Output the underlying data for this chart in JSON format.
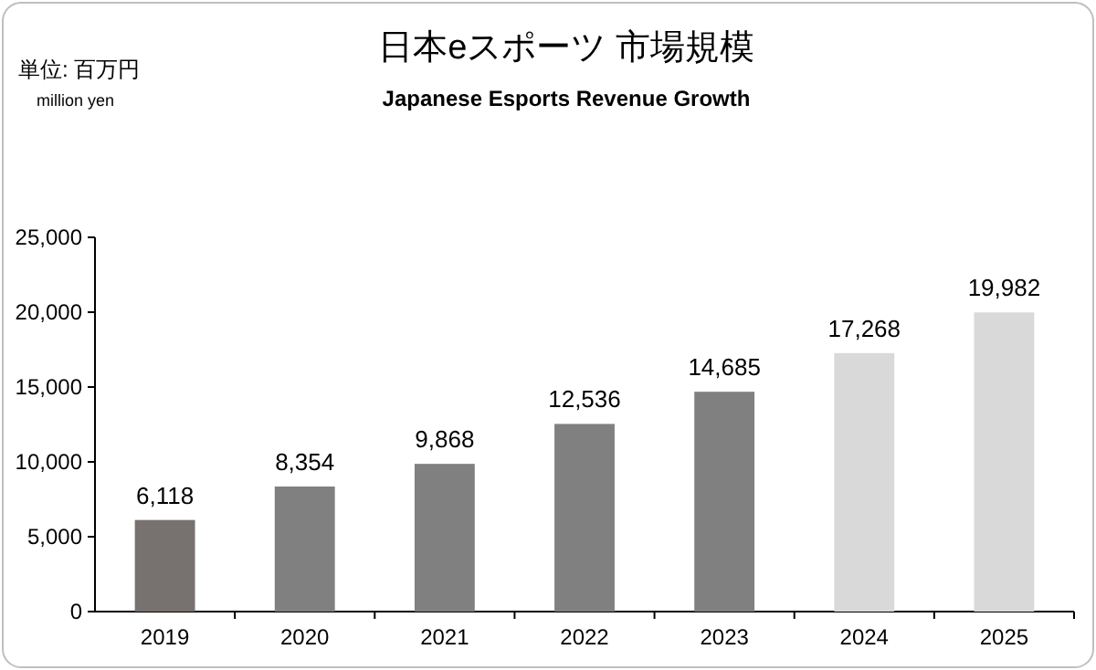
{
  "chart_data": {
    "type": "bar",
    "title": "日本eスポーツ 市場規模",
    "subtitle": "Japanese Esports Revenue Growth",
    "annotations": [
      "単位: 百万円",
      "million yen"
    ],
    "categories": [
      "2019",
      "2020",
      "2021",
      "2022",
      "2023",
      "2024",
      "2025"
    ],
    "values": [
      6118,
      8354,
      9868,
      12536,
      14685,
      17268,
      19982
    ],
    "value_labels": [
      "6,118",
      "8,354",
      "9,868",
      "12,536",
      "14,685",
      "17,268",
      "19,982"
    ],
    "colors": [
      "#77716f",
      "#808080",
      "#808080",
      "#808080",
      "#808080",
      "#d9d9d9",
      "#d9d9d9"
    ],
    "ylim": [
      0,
      25000
    ],
    "yticks": [
      {
        "value": 0,
        "label": "0"
      },
      {
        "value": 5000,
        "label": "5,000"
      },
      {
        "value": 10000,
        "label": "10,000"
      },
      {
        "value": 15000,
        "label": "15,000"
      },
      {
        "value": 20000,
        "label": "20,000"
      },
      {
        "value": 25000,
        "label": "25,000"
      }
    ],
    "grid": false
  }
}
